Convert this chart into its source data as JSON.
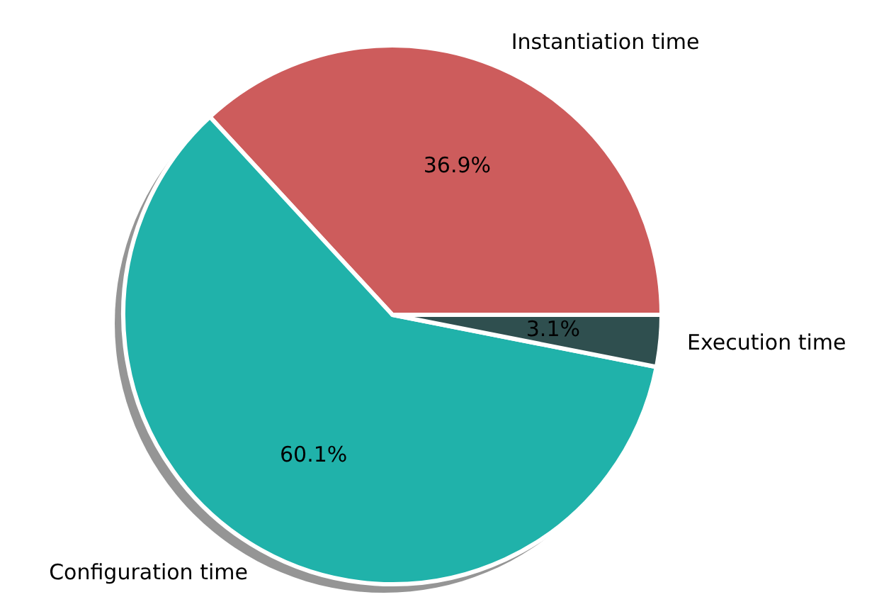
{
  "chart_data": {
    "type": "pie",
    "categories": [
      "Instantiation time",
      "Configuration time",
      "Execution time"
    ],
    "values": [
      36.9,
      60.1,
      3.1
    ],
    "colors": [
      "#cd5c5c",
      "#20b2aa",
      "#2f4f4f"
    ],
    "value_labels": [
      "36.9%",
      "60.1%",
      "3.1%"
    ]
  }
}
